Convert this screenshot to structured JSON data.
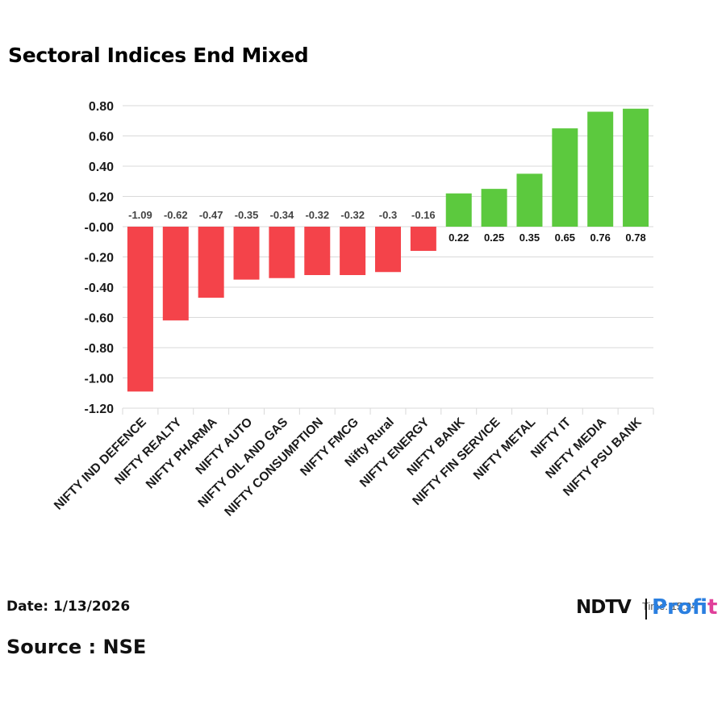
{
  "title": "Sectoral Indices End Mixed",
  "footer": {
    "date": "Date: 1/13/2026",
    "source": "Source : NSE"
  },
  "logo": {
    "brand": "NDTV",
    "product_main": "Profi",
    "product_tail": "t",
    "time_label": "Time: 15:34"
  },
  "colors": {
    "negative": "#f4434a",
    "positive": "#5cc93e",
    "grid": "#d9d9d9",
    "text": "#1a1a1a",
    "label": "#444444"
  },
  "chart_data": {
    "type": "bar",
    "title": "Sectoral Indices End Mixed",
    "categories": [
      "NIFTY IND DEFENCE",
      "NIFTY REALTY",
      "NIFTY PHARMA",
      "NIFTY AUTO",
      "NIFTY OIL AND GAS",
      "NIFTY CONSUMPTION",
      "NIFTY FMCG",
      "Nifty Rural",
      "NIFTY ENERGY",
      "NIFTY BANK",
      "NIFTY FIN SERVICE",
      "NIFTY METAL",
      "NIFTY IT",
      "NIFTY MEDIA",
      "NIFTY PSU BANK"
    ],
    "values": [
      -1.09,
      -0.62,
      -0.47,
      -0.35,
      -0.34,
      -0.32,
      -0.32,
      -0.3,
      -0.16,
      0.22,
      0.25,
      0.35,
      0.65,
      0.76,
      0.78
    ],
    "value_labels": [
      "-1.09",
      "-0.62",
      "-0.47",
      "-0.35",
      "-0.34",
      "-0.32",
      "-0.32",
      "-0.3",
      "-0.16",
      "0.22",
      "0.25",
      "0.35",
      "0.65",
      "0.76",
      "0.78"
    ],
    "ylim": [
      -1.2,
      0.8
    ],
    "yticks": [
      0.8,
      0.6,
      0.4,
      0.2,
      0.0,
      -0.2,
      -0.4,
      -0.6,
      -0.8,
      -1.0,
      -1.2
    ],
    "ytick_labels": [
      "0.80",
      "0.60",
      "0.40",
      "0.20",
      "-0.00",
      "-0.20",
      "-0.40",
      "-0.60",
      "-0.80",
      "-1.00",
      "-1.20"
    ],
    "xlabel": "",
    "ylabel": "",
    "grid": true
  }
}
